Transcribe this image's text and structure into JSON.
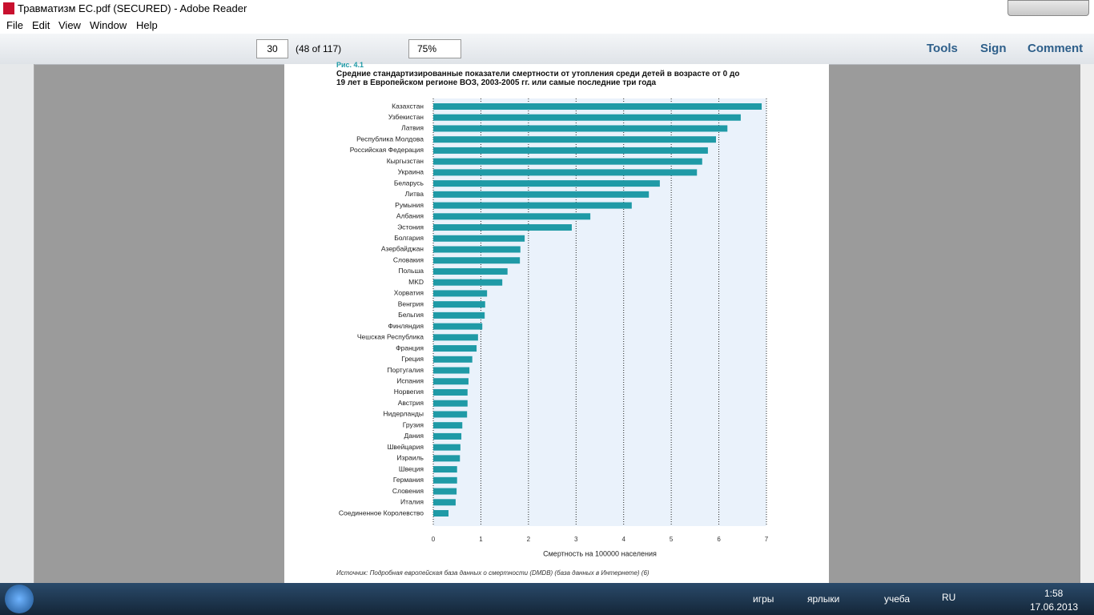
{
  "window": {
    "title": "Травматизм ЕС.pdf (SECURED) - Adobe Reader"
  },
  "menu": [
    "File",
    "Edit",
    "View",
    "Window",
    "Help"
  ],
  "toolbar": {
    "page": "30",
    "page_count": "(48 of 117)",
    "zoom": "75%",
    "buttons": [
      "Tools",
      "Sign",
      "Comment"
    ]
  },
  "chart_data": {
    "type": "bar",
    "orientation": "horizontal",
    "caption": "Рис. 4.1",
    "title": "Средние стандартизированные показатели смертности от утопления среди детей в возрасте от 0 до 19 лет в Европейском регионе ВОЗ, 2003-2005 гг. или самые последние три года",
    "categories": [
      "Казахстан",
      "Узбекистан",
      "Латвия",
      "Республика Молдова",
      "Российская Федерация",
      "Кыргызстан",
      "Украина",
      "Беларусь",
      "Литва",
      "Румыния",
      "Албания",
      "Эстония",
      "Болгария",
      "Азербайджан",
      "Словакия",
      "Польша",
      "MKD",
      "Хорватия",
      "Венгрия",
      "Бельгия",
      "Финляндия",
      "Чешская Республика",
      "Франция",
      "Греция",
      "Португалия",
      "Испания",
      "Норвегия",
      "Австрия",
      "Нидерланды",
      "Грузия",
      "Дания",
      "Швейцария",
      "Израиль",
      "Швеция",
      "Германия",
      "Словения",
      "Италия",
      "Соединенное Королевство"
    ],
    "values": [
      6.9,
      6.46,
      6.18,
      5.94,
      5.77,
      5.65,
      5.54,
      4.76,
      4.53,
      4.17,
      3.3,
      2.91,
      1.92,
      1.83,
      1.82,
      1.56,
      1.45,
      1.13,
      1.09,
      1.08,
      1.03,
      0.94,
      0.91,
      0.82,
      0.76,
      0.74,
      0.72,
      0.72,
      0.71,
      0.61,
      0.59,
      0.57,
      0.56,
      0.5,
      0.5,
      0.49,
      0.47,
      0.32
    ],
    "color": "#1f9aa6",
    "xlim": [
      0,
      7
    ],
    "xticks": [
      0,
      1,
      2,
      3,
      4,
      5,
      6,
      7
    ],
    "grid": true,
    "xlabel": "Смертность на 100000 населения",
    "source": "Источник: Подробная европейская база данных о смертности (DMDB) (база данных в Интернете) (6)"
  },
  "taskbar": {
    "items": [
      "игры",
      "ярлыки",
      "учеба"
    ],
    "lang": "RU",
    "time": "1:58",
    "date": "17.06.2013"
  }
}
